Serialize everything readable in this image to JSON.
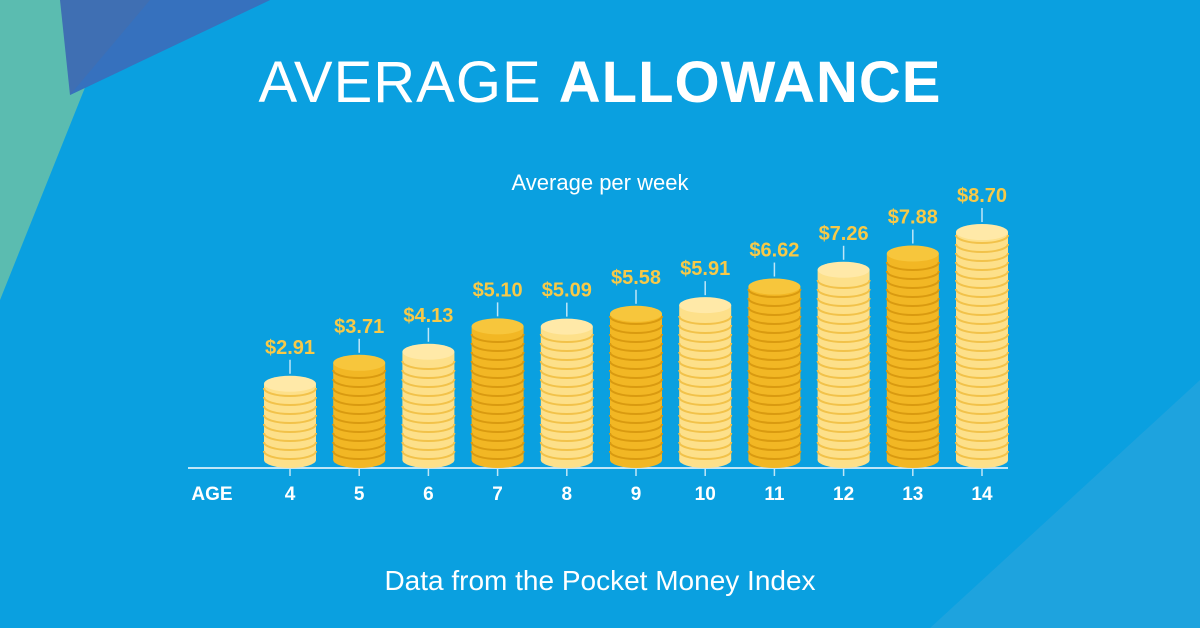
{
  "title": {
    "light": "AVERAGE",
    "bold": "ALLOWANCE"
  },
  "subtitle": "Average per week",
  "footer": "Data from the Pocket Money Index",
  "colors": {
    "background": "#0aa0e0",
    "label": "#f7c948",
    "coin_light": "#fde08a",
    "coin_dark": "#f2b724",
    "axis": "#bfe6f7"
  },
  "chart_data": {
    "type": "bar",
    "title": "AVERAGE ALLOWANCE",
    "subtitle": "Average per week",
    "xlabel": "AGE",
    "ylabel": "",
    "categories": [
      "4",
      "5",
      "6",
      "7",
      "8",
      "9",
      "10",
      "11",
      "12",
      "13",
      "14"
    ],
    "values": [
      2.91,
      3.71,
      4.13,
      5.1,
      5.09,
      5.58,
      5.91,
      6.62,
      7.26,
      7.88,
      8.7
    ],
    "labels": [
      "$2.91",
      "$3.71",
      "$4.13",
      "$5.10",
      "$5.09",
      "$5.58",
      "$5.91",
      "$6.62",
      "$7.26",
      "$7.88",
      "$8.70"
    ],
    "grid": false
  }
}
